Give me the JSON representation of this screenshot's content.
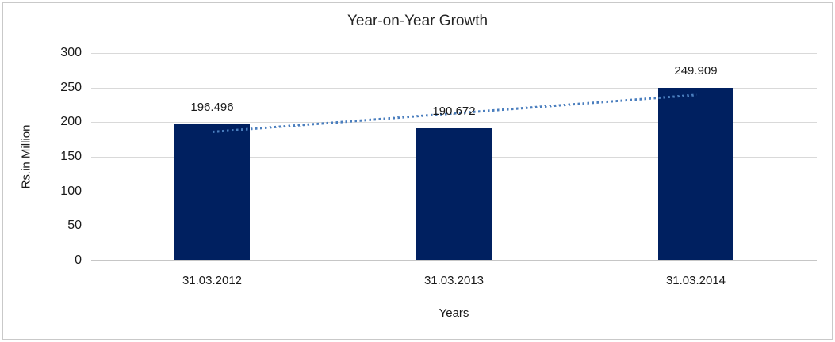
{
  "chart_data": {
    "type": "bar",
    "title": "Year-on-Year Growth",
    "xlabel": "Years",
    "ylabel": "Rs.in Million",
    "categories": [
      "31.03.2012",
      "31.03.2013",
      "31.03.2014"
    ],
    "values": [
      196.496,
      190.672,
      249.909
    ],
    "value_labels": [
      "196.496",
      "190.672",
      "249.909"
    ],
    "ylim": [
      0,
      300
    ],
    "yticks": [
      0,
      50,
      100,
      150,
      200,
      250,
      300
    ],
    "grid": "horizontal",
    "legend": "none",
    "trendline": {
      "type": "linear",
      "style": "dotted"
    }
  },
  "colors": {
    "bar": "#002060",
    "trendline": "#4a7ebe",
    "gridline": "#d9d9d9",
    "axis_line": "#c6c6c6",
    "text": "#1a1a1a",
    "border": "#c9c9c9",
    "background": "#ffffff"
  }
}
